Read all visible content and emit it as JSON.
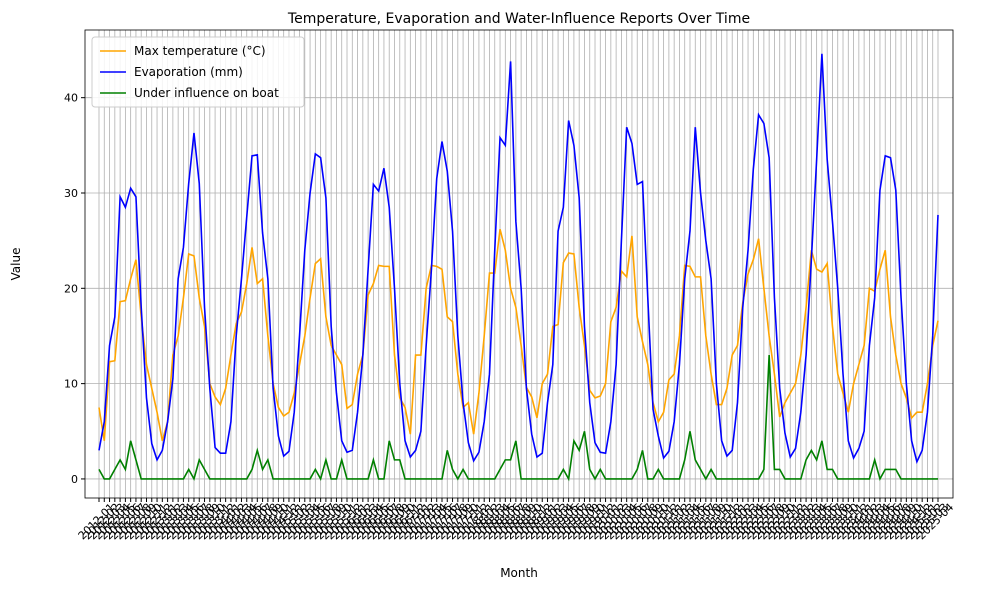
{
  "chart_data": {
    "type": "line",
    "title": "Temperature, Evaporation and Water-Influence Reports Over Time",
    "x_label": "Month",
    "y_label": "Value",
    "categories": [
      "2012-01",
      "2012-02",
      "2012-03",
      "2012-04",
      "2012-05",
      "2012-06",
      "2012-07",
      "2012-08",
      "2012-09",
      "2012-10",
      "2012-11",
      "2012-12",
      "2013-01",
      "2013-02",
      "2013-03",
      "2013-04",
      "2013-05",
      "2013-06",
      "2013-07",
      "2013-08",
      "2013-09",
      "2013-10",
      "2013-11",
      "2013-12",
      "2014-01",
      "2014-02",
      "2014-03",
      "2014-04",
      "2014-05",
      "2014-06",
      "2014-07",
      "2014-08",
      "2014-09",
      "2014-10",
      "2014-11",
      "2014-12",
      "2015-01",
      "2015-02",
      "2015-03",
      "2015-04",
      "2015-05",
      "2015-06",
      "2015-07",
      "2015-08",
      "2015-09",
      "2015-10",
      "2015-11",
      "2015-12",
      "2016-01",
      "2016-02",
      "2016-03",
      "2016-04",
      "2016-05",
      "2016-06",
      "2016-07",
      "2016-08",
      "2016-09",
      "2016-10",
      "2016-11",
      "2016-12",
      "2017-01",
      "2017-02",
      "2017-03",
      "2017-04",
      "2017-05",
      "2017-06",
      "2017-07",
      "2017-08",
      "2017-09",
      "2017-10",
      "2017-11",
      "2017-12",
      "2018-01",
      "2018-02",
      "2018-03",
      "2018-04",
      "2018-05",
      "2018-06",
      "2018-07",
      "2018-08",
      "2018-09",
      "2018-10",
      "2018-11",
      "2018-12",
      "2019-01",
      "2019-02",
      "2019-03",
      "2019-04",
      "2019-05",
      "2019-06",
      "2019-07",
      "2019-08",
      "2019-09",
      "2019-10",
      "2019-11",
      "2019-12",
      "2020-01",
      "2020-02",
      "2020-03",
      "2020-04",
      "2020-05",
      "2020-06",
      "2020-07",
      "2020-08",
      "2020-09",
      "2020-10",
      "2020-11",
      "2020-12",
      "2021-01",
      "2021-02",
      "2021-03",
      "2021-04",
      "2021-05",
      "2021-06",
      "2021-07",
      "2021-08",
      "2021-09",
      "2021-10",
      "2021-11",
      "2021-12",
      "2022-01",
      "2022-02",
      "2022-03",
      "2022-04",
      "2022-05",
      "2022-06",
      "2022-07",
      "2022-08",
      "2022-09",
      "2022-10",
      "2022-11",
      "2022-12",
      "2023-01",
      "2023-02",
      "2023-03",
      "2023-04",
      "2023-05",
      "2023-06",
      "2023-07",
      "2023-08",
      "2023-09",
      "2023-10",
      "2023-11",
      "2023-12",
      "2024-01",
      "2024-02",
      "2024-03",
      "2024-04",
      "2024-05",
      "2024-06",
      "2024-07",
      "2024-08",
      "2024-09",
      "2024-10",
      "2024-11",
      "2024-12",
      "2025-01",
      "2025-02",
      "2025-03",
      "2025-04"
    ],
    "series": [
      {
        "name": "Max temperature (°C)",
        "color": "orange",
        "values": [
          7.5,
          4,
          12.3,
          12.4,
          18.6,
          18.7,
          21,
          23,
          17,
          12,
          9.5,
          7,
          4,
          6,
          13,
          15,
          19,
          23.6,
          23.4,
          19,
          16,
          10,
          8.6,
          7.8,
          9.5,
          13,
          16.3,
          17.5,
          20.5,
          24.3,
          20.5,
          21,
          15,
          10,
          7.5,
          6.6,
          7,
          9,
          12,
          15,
          19,
          22.6,
          23.1,
          17,
          14,
          13,
          12,
          7.4,
          7.8,
          11,
          13,
          19.3,
          20.5,
          22.4,
          22.3,
          22.3,
          13,
          8.5,
          7.5,
          4.7,
          13,
          13,
          20,
          22.4,
          22.3,
          22,
          17,
          16.5,
          11,
          7.5,
          8,
          4.7,
          9,
          15,
          21.6,
          21.6,
          26.2,
          24,
          20,
          18,
          14,
          9.6,
          8.6,
          6.4,
          10,
          11,
          16,
          16.2,
          22.7,
          23.7,
          23.6,
          18,
          14,
          9.3,
          8.5,
          8.7,
          10,
          16.5,
          18,
          21.8,
          21.2,
          25.5,
          17,
          14.4,
          12,
          8,
          6,
          7,
          10.4,
          11,
          15,
          22.4,
          22.3,
          21.2,
          21.2,
          15,
          11,
          7.8,
          7.8,
          9.5,
          13,
          14,
          18.5,
          21.5,
          23,
          25.2,
          20,
          15,
          11,
          6.5,
          8,
          9,
          10,
          13,
          18,
          24,
          22,
          21.7,
          22.6,
          16,
          11,
          9,
          7,
          10,
          12,
          14,
          20,
          19.7,
          22,
          24,
          17,
          13,
          10,
          8.5,
          6.4,
          7,
          7,
          10,
          14,
          16.6
        ]
      },
      {
        "name": "Evaporation (mm)",
        "color": "blue",
        "values": [
          3,
          6,
          14,
          17,
          29.6,
          28.5,
          30.5,
          29.6,
          18,
          8.5,
          3.7,
          2,
          3,
          6,
          10.5,
          21,
          24.3,
          31,
          36.3,
          31,
          18,
          9.5,
          3.3,
          2.7,
          2.7,
          6,
          15,
          21,
          27.5,
          33.9,
          34,
          25.8,
          21,
          9.5,
          4.5,
          2.4,
          2.9,
          7,
          15,
          24,
          30,
          34.1,
          33.7,
          29.5,
          16,
          9,
          4,
          2.8,
          3,
          7,
          13,
          22,
          30.9,
          30.2,
          32.6,
          28.5,
          20,
          10,
          4,
          2.3,
          3,
          5,
          14,
          22,
          31.5,
          35.4,
          32.3,
          26,
          15,
          8,
          3.8,
          1.9,
          2.8,
          6,
          11,
          24,
          35.8,
          35,
          43.8,
          27,
          20,
          9.5,
          4.7,
          2.3,
          2.7,
          8,
          12,
          26,
          28.5,
          37.6,
          35,
          29.5,
          16,
          8,
          3.8,
          2.8,
          2.7,
          6,
          12,
          25,
          36.9,
          35.2,
          30.9,
          31.2,
          19,
          7.3,
          4.5,
          2.2,
          2.9,
          6,
          12,
          21,
          26,
          36.9,
          30,
          25,
          21,
          10,
          4,
          2.4,
          3,
          8,
          18,
          24,
          32.5,
          38.2,
          37.3,
          33.7,
          19,
          9.5,
          4.8,
          2.3,
          3.2,
          7,
          13,
          23,
          33.5,
          44.6,
          33.5,
          27,
          20,
          11,
          4,
          2.2,
          3.2,
          5,
          14,
          19,
          30.3,
          33.9,
          33.7,
          30.3,
          19,
          10,
          4,
          1.8,
          3,
          7,
          15,
          27.7
        ]
      },
      {
        "name": "Under influence on boat",
        "color": "green",
        "values": [
          1,
          0,
          0,
          1,
          2,
          1,
          4,
          2,
          0,
          0,
          0,
          0,
          0,
          0,
          0,
          0,
          0,
          1,
          0,
          2,
          1,
          0,
          0,
          0,
          0,
          0,
          0,
          0,
          0,
          1,
          3,
          1,
          2,
          0,
          0,
          0,
          0,
          0,
          0,
          0,
          0,
          1,
          0,
          2,
          0,
          0,
          2,
          0,
          0,
          0,
          0,
          0,
          2,
          0,
          0,
          4,
          2,
          2,
          0,
          0,
          0,
          0,
          0,
          0,
          0,
          0,
          3,
          1,
          0,
          1,
          0,
          0,
          0,
          0,
          0,
          0,
          1,
          2,
          2,
          4,
          0,
          0,
          0,
          0,
          0,
          0,
          0,
          0,
          1,
          0,
          4,
          3,
          5,
          1,
          0,
          1,
          0,
          0,
          0,
          0,
          0,
          0,
          1,
          3,
          0,
          0,
          1,
          0,
          0,
          0,
          0,
          2,
          5,
          2,
          1,
          0,
          1,
          0,
          0,
          0,
          0,
          0,
          0,
          0,
          0,
          0,
          1,
          13,
          1,
          1,
          0,
          0,
          0,
          0,
          2,
          3,
          2,
          4,
          1,
          1,
          0,
          0,
          0,
          0,
          0,
          0,
          0,
          2,
          0,
          1,
          1,
          1,
          0,
          0,
          0,
          0,
          0,
          0,
          0,
          0
        ]
      }
    ],
    "ylim": [
      -2,
      47.1
    ],
    "yticks": [
      0,
      10,
      20,
      30,
      40
    ],
    "grid": true,
    "legend": "upper left"
  }
}
